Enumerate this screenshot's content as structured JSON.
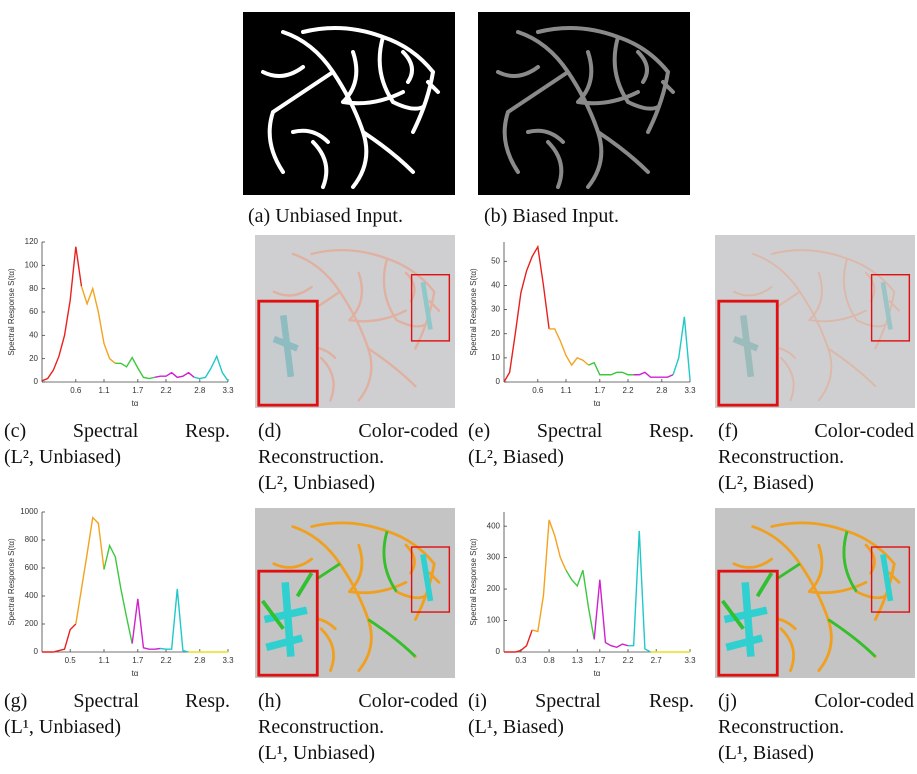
{
  "chart_data": [
    {
      "type": "line",
      "ylabel": "Spectral Response S(tα)",
      "xlabel": "tα",
      "x": [
        0,
        0.1,
        0.2,
        0.3,
        0.4,
        0.5,
        0.6,
        0.7,
        0.8,
        0.9,
        1.0,
        1.1,
        1.2,
        1.3,
        1.4,
        1.5,
        1.6,
        1.7,
        1.8,
        1.9,
        2.0,
        2.1,
        2.2,
        2.3,
        2.4,
        2.5,
        2.6,
        2.7,
        2.8,
        2.9,
        3.0,
        3.1,
        3.2,
        3.3
      ],
      "xlim": [
        0,
        3.3
      ],
      "xticks": [
        0.6,
        1.1,
        1.7,
        2.2,
        2.8,
        3.3
      ],
      "ylim": [
        0,
        120
      ],
      "yticks": [
        0,
        20,
        40,
        60,
        80,
        100,
        120
      ],
      "series": [
        {
          "color": "#e8211e",
          "values": [
            1,
            3,
            10,
            22,
            40,
            70,
            116,
            82,
            null,
            null,
            null,
            null,
            null,
            null,
            null,
            null,
            null,
            null,
            null,
            null,
            null,
            null,
            null,
            null,
            null,
            null,
            null,
            null,
            null,
            null,
            null,
            null,
            null,
            null
          ]
        },
        {
          "color": "#f5a21d",
          "values": [
            null,
            null,
            null,
            null,
            null,
            null,
            null,
            82,
            67,
            80,
            60,
            33,
            20,
            16,
            null,
            null,
            null,
            null,
            null,
            null,
            null,
            null,
            null,
            null,
            null,
            null,
            null,
            null,
            null,
            null,
            null,
            null,
            null,
            null
          ]
        },
        {
          "color": "#3cc83c",
          "values": [
            null,
            null,
            null,
            null,
            null,
            null,
            null,
            null,
            null,
            null,
            null,
            null,
            null,
            16,
            16,
            13,
            21,
            12,
            4,
            3,
            4,
            null,
            null,
            null,
            null,
            null,
            null,
            null,
            null,
            null,
            null,
            null,
            null,
            null
          ]
        },
        {
          "color": "#d020d0",
          "values": [
            null,
            null,
            null,
            null,
            null,
            null,
            null,
            null,
            null,
            null,
            null,
            null,
            null,
            null,
            null,
            null,
            null,
            null,
            null,
            null,
            4,
            5,
            5,
            8,
            4,
            5,
            8,
            4,
            null,
            null,
            null,
            null,
            null,
            null
          ]
        },
        {
          "color": "#20c8c8",
          "values": [
            null,
            null,
            null,
            null,
            null,
            null,
            null,
            null,
            null,
            null,
            null,
            null,
            null,
            null,
            null,
            null,
            null,
            null,
            null,
            null,
            null,
            null,
            null,
            null,
            null,
            null,
            null,
            4,
            3,
            4,
            12,
            22,
            8,
            1
          ]
        }
      ]
    },
    {
      "type": "line",
      "ylabel": "Spectral Response S(tα)",
      "xlabel": "tα",
      "x": [
        0,
        0.1,
        0.2,
        0.3,
        0.4,
        0.5,
        0.6,
        0.7,
        0.8,
        0.9,
        1.0,
        1.1,
        1.2,
        1.3,
        1.4,
        1.5,
        1.6,
        1.7,
        1.8,
        1.9,
        2.0,
        2.1,
        2.2,
        2.3,
        2.4,
        2.5,
        2.6,
        2.7,
        2.8,
        2.9,
        3.0,
        3.1,
        3.2,
        3.3
      ],
      "xlim": [
        0,
        3.3
      ],
      "xticks": [
        0.6,
        1.1,
        1.7,
        2.2,
        2.8,
        3.3
      ],
      "ylim": [
        0,
        58
      ],
      "yticks": [
        0,
        10,
        20,
        30,
        40,
        50
      ],
      "series": [
        {
          "color": "#e8211e",
          "values": [
            0,
            4,
            20,
            37,
            46,
            52,
            56,
            40,
            22,
            null,
            null,
            null,
            null,
            null,
            null,
            null,
            null,
            null,
            null,
            null,
            null,
            null,
            null,
            null,
            null,
            null,
            null,
            null,
            null,
            null,
            null,
            null,
            null,
            null
          ]
        },
        {
          "color": "#f5a21d",
          "values": [
            null,
            null,
            null,
            null,
            null,
            null,
            null,
            null,
            22,
            22,
            17,
            11,
            7,
            10,
            9,
            7,
            null,
            null,
            null,
            null,
            null,
            null,
            null,
            null,
            null,
            null,
            null,
            null,
            null,
            null,
            null,
            null,
            null,
            null
          ]
        },
        {
          "color": "#3cc83c",
          "values": [
            null,
            null,
            null,
            null,
            null,
            null,
            null,
            null,
            null,
            null,
            null,
            null,
            null,
            null,
            null,
            7,
            8,
            3,
            3,
            3,
            4,
            4,
            3,
            3,
            null,
            null,
            null,
            null,
            null,
            null,
            null,
            null,
            null,
            null
          ]
        },
        {
          "color": "#d020d0",
          "values": [
            null,
            null,
            null,
            null,
            null,
            null,
            null,
            null,
            null,
            null,
            null,
            null,
            null,
            null,
            null,
            null,
            null,
            null,
            null,
            null,
            null,
            null,
            null,
            3,
            3,
            4,
            2,
            2,
            2,
            2,
            3,
            null,
            null,
            null
          ]
        },
        {
          "color": "#20c8c8",
          "values": [
            null,
            null,
            null,
            null,
            null,
            null,
            null,
            null,
            null,
            null,
            null,
            null,
            null,
            null,
            null,
            null,
            null,
            null,
            null,
            null,
            null,
            null,
            null,
            null,
            null,
            null,
            null,
            null,
            null,
            null,
            3,
            10,
            27,
            1
          ]
        }
      ]
    },
    {
      "type": "line",
      "ylabel": "Spectral Response S(tα)",
      "xlabel": "tα",
      "x": [
        0,
        0.1,
        0.2,
        0.3,
        0.4,
        0.5,
        0.6,
        0.7,
        0.8,
        0.9,
        1.0,
        1.1,
        1.2,
        1.3,
        1.4,
        1.5,
        1.6,
        1.7,
        1.8,
        1.9,
        2.0,
        2.1,
        2.2,
        2.3,
        2.4,
        2.5,
        2.6,
        2.7,
        2.8,
        2.9,
        3.0,
        3.1,
        3.2,
        3.3
      ],
      "xlim": [
        0,
        3.3
      ],
      "xticks": [
        0.5,
        1.1,
        1.7,
        2.2,
        2.8,
        3.3
      ],
      "ylim": [
        0,
        1000
      ],
      "yticks": [
        0,
        200,
        400,
        600,
        800,
        1000
      ],
      "series": [
        {
          "color": "#e8211e",
          "values": [
            0,
            0,
            0,
            10,
            20,
            160,
            200,
            null,
            null,
            null,
            null,
            null,
            null,
            null,
            null,
            null,
            null,
            null,
            null,
            null,
            null,
            null,
            null,
            null,
            null,
            null,
            null,
            null,
            null,
            null,
            null,
            null,
            null,
            null
          ]
        },
        {
          "color": "#f5a21d",
          "values": [
            null,
            null,
            null,
            null,
            null,
            null,
            200,
            450,
            700,
            960,
            920,
            590,
            null,
            null,
            null,
            null,
            null,
            null,
            null,
            null,
            null,
            null,
            null,
            null,
            null,
            null,
            null,
            null,
            null,
            null,
            null,
            null,
            null,
            null
          ]
        },
        {
          "color": "#3cc83c",
          "values": [
            null,
            null,
            null,
            null,
            null,
            null,
            null,
            null,
            null,
            null,
            null,
            590,
            760,
            680,
            450,
            250,
            60,
            null,
            null,
            null,
            null,
            null,
            null,
            null,
            null,
            null,
            null,
            null,
            null,
            null,
            null,
            null,
            null,
            null
          ]
        },
        {
          "color": "#d020d0",
          "values": [
            null,
            null,
            null,
            null,
            null,
            null,
            null,
            null,
            null,
            null,
            null,
            null,
            null,
            null,
            null,
            null,
            60,
            380,
            30,
            20,
            20,
            25,
            null,
            null,
            null,
            null,
            null,
            null,
            null,
            null,
            null,
            null,
            null,
            null
          ]
        },
        {
          "color": "#20c8c8",
          "values": [
            null,
            null,
            null,
            null,
            null,
            null,
            null,
            null,
            null,
            null,
            null,
            null,
            null,
            null,
            null,
            null,
            null,
            null,
            null,
            null,
            null,
            25,
            20,
            20,
            450,
            10,
            0,
            null,
            null,
            null,
            null,
            null,
            null,
            null
          ]
        },
        {
          "color": "#e8e020",
          "values": [
            null,
            null,
            null,
            null,
            null,
            null,
            null,
            null,
            null,
            null,
            null,
            null,
            null,
            null,
            null,
            null,
            null,
            null,
            null,
            null,
            null,
            null,
            null,
            null,
            null,
            null,
            0,
            0,
            0,
            0,
            0,
            0,
            0,
            0
          ]
        }
      ]
    },
    {
      "type": "line",
      "ylabel": "Spectral Response S(tα)",
      "xlabel": "tα",
      "x": [
        0,
        0.1,
        0.2,
        0.3,
        0.4,
        0.5,
        0.6,
        0.7,
        0.8,
        0.9,
        1.0,
        1.1,
        1.2,
        1.3,
        1.4,
        1.5,
        1.6,
        1.7,
        1.8,
        1.9,
        2.0,
        2.1,
        2.2,
        2.3,
        2.4,
        2.5,
        2.6,
        2.7,
        2.8,
        2.9,
        3.0,
        3.1,
        3.2,
        3.3
      ],
      "xlim": [
        0,
        3.3
      ],
      "xticks": [
        0.3,
        0.8,
        1.3,
        1.7,
        2.2,
        2.7,
        3.3
      ],
      "ylim": [
        0,
        445
      ],
      "yticks": [
        0,
        100,
        200,
        300,
        400
      ],
      "series": [
        {
          "color": "#e8211e",
          "values": [
            0,
            0,
            0,
            5,
            20,
            70,
            null,
            null,
            null,
            null,
            null,
            null,
            null,
            null,
            null,
            null,
            null,
            null,
            null,
            null,
            null,
            null,
            null,
            null,
            null,
            null,
            null,
            null,
            null,
            null,
            null,
            null,
            null,
            null
          ]
        },
        {
          "color": "#f5a21d",
          "values": [
            null,
            null,
            null,
            null,
            null,
            70,
            65,
            180,
            420,
            370,
            300,
            260,
            null,
            null,
            null,
            null,
            null,
            null,
            null,
            null,
            null,
            null,
            null,
            null,
            null,
            null,
            null,
            null,
            null,
            null,
            null,
            null,
            null,
            null
          ]
        },
        {
          "color": "#3cc83c",
          "values": [
            null,
            null,
            null,
            null,
            null,
            null,
            null,
            null,
            null,
            null,
            null,
            260,
            230,
            210,
            260,
            140,
            40,
            null,
            null,
            null,
            null,
            null,
            null,
            null,
            null,
            null,
            null,
            null,
            null,
            null,
            null,
            null,
            null,
            null
          ]
        },
        {
          "color": "#d020d0",
          "values": [
            null,
            null,
            null,
            null,
            null,
            null,
            null,
            null,
            null,
            null,
            null,
            null,
            null,
            null,
            null,
            null,
            40,
            230,
            30,
            20,
            15,
            25,
            20,
            null,
            null,
            null,
            null,
            null,
            null,
            null,
            null,
            null,
            null,
            null
          ]
        },
        {
          "color": "#20c8c8",
          "values": [
            null,
            null,
            null,
            null,
            null,
            null,
            null,
            null,
            null,
            null,
            null,
            null,
            null,
            null,
            null,
            null,
            null,
            null,
            null,
            null,
            null,
            null,
            20,
            20,
            385,
            10,
            0,
            null,
            null,
            null,
            null,
            null,
            null,
            null
          ]
        },
        {
          "color": "#e8e020",
          "values": [
            null,
            null,
            null,
            null,
            null,
            null,
            null,
            null,
            null,
            null,
            null,
            null,
            null,
            null,
            null,
            null,
            null,
            null,
            null,
            null,
            null,
            null,
            null,
            null,
            null,
            null,
            0,
            0,
            0,
            0,
            0,
            0,
            0,
            0
          ]
        }
      ]
    }
  ],
  "captions": {
    "a": [
      "(a) Unbiased Input."
    ],
    "b": [
      "(b) Biased Input."
    ],
    "c": [
      "(c) Spectral Resp.",
      "(L², Unbiased)"
    ],
    "d": [
      "(d) Color-coded",
      "Reconstruction.",
      "(L², Unbiased)"
    ],
    "e": [
      "(e) Spectral Resp.",
      "(L², Biased)"
    ],
    "f": [
      "(f) Color-coded",
      "Reconstruction.",
      "(L², Biased)"
    ],
    "g": [
      "(g) Spectral Resp.",
      "(L¹, Unbiased)"
    ],
    "h": [
      "(h) Color-coded",
      "Reconstruction.",
      "(L¹, Unbiased)"
    ],
    "i": [
      "(i) Spectral Resp.",
      "(L¹, Biased)"
    ],
    "j": [
      "(j) Color-coded",
      "Reconstruction.",
      "(L¹, Biased)"
    ]
  }
}
